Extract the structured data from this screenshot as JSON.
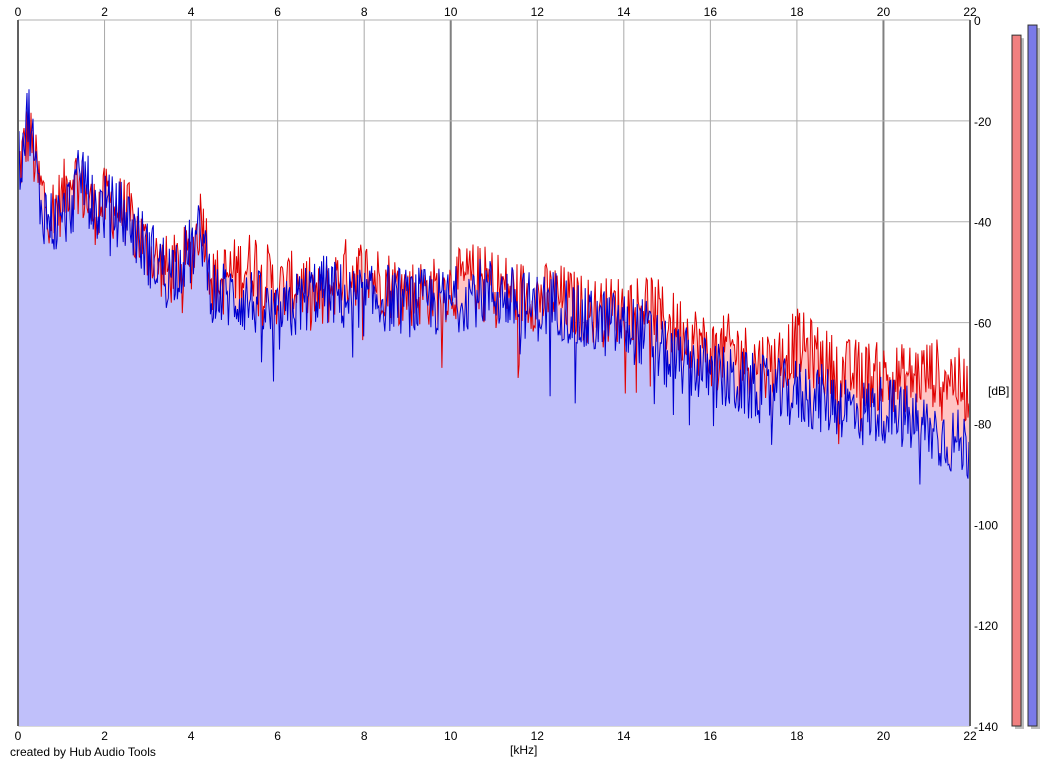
{
  "chart_data": {
    "type": "area",
    "xlabel": "[kHz]",
    "ylabel": "[dB]",
    "xlim": [
      0,
      22
    ],
    "ylim": [
      -140,
      0
    ],
    "x_ticks": [
      "0",
      "2",
      "4",
      "6",
      "8",
      "10",
      "12",
      "14",
      "16",
      "18",
      "20",
      "22"
    ],
    "y_ticks": [
      "0",
      "-20",
      "-40",
      "-60",
      "-80",
      "-100",
      "-120",
      "-140"
    ],
    "grid": true,
    "x": [
      0,
      0.25,
      0.5,
      0.75,
      1,
      1.25,
      1.5,
      1.75,
      2,
      2.5,
      3,
      3.5,
      4,
      4.25,
      4.5,
      5,
      5.5,
      6,
      6.5,
      7,
      7.5,
      8,
      8.5,
      9,
      9.5,
      10,
      10.5,
      11,
      11.5,
      12,
      12.5,
      13,
      13.5,
      14,
      14.5,
      15,
      15.5,
      16,
      16.5,
      17,
      17.5,
      18,
      18.5,
      19,
      19.5,
      20,
      20.5,
      21,
      21.5,
      22
    ],
    "series": [
      {
        "color": "#e00000",
        "fill": "#ffc4c4",
        "values": [
          -30,
          -22,
          -33,
          -38,
          -36,
          -30,
          -34,
          -38,
          -36,
          -38,
          -46,
          -50,
          -47,
          -38,
          -52,
          -50,
          -48,
          -54,
          -52,
          -56,
          -50,
          -50,
          -52,
          -54,
          -54,
          -53,
          -51,
          -52,
          -54,
          -55,
          -55,
          -57,
          -58,
          -57,
          -56,
          -60,
          -62,
          -66,
          -65,
          -68,
          -68,
          -64,
          -67,
          -70,
          -70,
          -71,
          -71,
          -70,
          -70,
          -74
        ]
      },
      {
        "color": "#0000d0",
        "fill": "#c0c0fa",
        "values": [
          -30,
          -18,
          -36,
          -40,
          -40,
          -36,
          -30,
          -38,
          -37,
          -39,
          -46,
          -50,
          -46,
          -42,
          -54,
          -55,
          -56,
          -60,
          -56,
          -53,
          -55,
          -56,
          -55,
          -56,
          -56,
          -56,
          -54,
          -54,
          -56,
          -57,
          -56,
          -60,
          -60,
          -61,
          -62,
          -67,
          -68,
          -70,
          -72,
          -73,
          -74,
          -74,
          -75,
          -76,
          -78,
          -77,
          -79,
          -81,
          -83,
          -85
        ]
      }
    ]
  },
  "level_meters": [
    {
      "color": "#f08080",
      "level_db": -3
    },
    {
      "color": "#7a7ae8",
      "level_db": -1
    }
  ],
  "labels": {
    "credit": "created by Hub Audio Tools",
    "x_unit": "[kHz]",
    "y_unit": "[dB]"
  }
}
